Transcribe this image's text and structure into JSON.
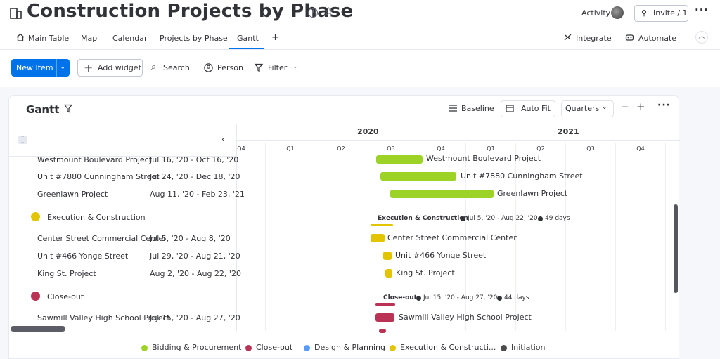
{
  "header": {
    "title": "Construction Projects by Phase",
    "activity": "Activity",
    "invite": "Invite / 1"
  },
  "tabs": [
    {
      "label": "Main Table"
    },
    {
      "label": "Map"
    },
    {
      "label": "Calendar"
    },
    {
      "label": "Projects by Phase"
    },
    {
      "label": "Gantt"
    },
    {
      "label": "+"
    }
  ],
  "right_actions": {
    "integrate": "Integrate",
    "automate": "Automate"
  },
  "toolbar": {
    "new_item": "New Item",
    "add_widget": "Add widget",
    "search": "Search",
    "person": "Person",
    "filter": "Filter"
  },
  "gantt": {
    "title": "Gantt",
    "baseline": "Baseline",
    "auto_fit": "Auto Fit",
    "quarters": "Quarters",
    "years": [
      {
        "label": "2020"
      },
      {
        "label": "2021"
      }
    ],
    "quarters_axis": [
      {
        "label": "Q4"
      },
      {
        "label": "Q1"
      },
      {
        "label": "Q2"
      },
      {
        "label": "Q3"
      },
      {
        "label": "Q4"
      },
      {
        "label": "Q1"
      },
      {
        "label": "Q2"
      },
      {
        "label": "Q3"
      },
      {
        "label": "Q4"
      }
    ],
    "rows": [
      {
        "name": "Westmount Boulevard Project",
        "dates": "Jul 16, '20 - Oct 16, '20"
      },
      {
        "name": "Unit #7880 Cunningham Street",
        "dates": "Jul 24, '20 - Dec 18, '20"
      },
      {
        "name": "Greenlawn Project",
        "dates": "Aug 11, '20 - Feb 23, '21"
      },
      {
        "name": "Center Street Commercial Center",
        "dates": "Jul 5, '20 - Aug 8, '20"
      },
      {
        "name": "Unit #466 Yonge Street",
        "dates": "Jul 29, '20 - Aug 21, '20"
      },
      {
        "name": "King St. Project",
        "dates": "Aug 2, '20 - Aug 22, '20"
      },
      {
        "name": "Sawmill Valley High School Project",
        "dates": "Jul 15, '20 - Aug 27, '20"
      }
    ],
    "groups": [
      {
        "name": "Execution & Construction",
        "color": "#e2c500",
        "summary_dates": "Jul 5, '20 - Aug 22, '20",
        "summary_days": "49 days"
      },
      {
        "name": "Close-out",
        "color": "#bb3354",
        "summary_dates": "Jul 15, '20 - Aug 27, '20",
        "summary_days": "44 days"
      }
    ],
    "legend": [
      {
        "label": "Bidding & Procurement",
        "color": "#9cd326"
      },
      {
        "label": "Close-out",
        "color": "#bb3354"
      },
      {
        "label": "Design & Planning",
        "color": "#579bfc"
      },
      {
        "label": "Execution & Constructi...",
        "color": "#e2c500"
      },
      {
        "label": "Initiation",
        "color": "#4b4b4b"
      }
    ],
    "colors": {
      "bidding": "#9cd326",
      "execution": "#e2c500",
      "closeout": "#bb3354"
    }
  }
}
